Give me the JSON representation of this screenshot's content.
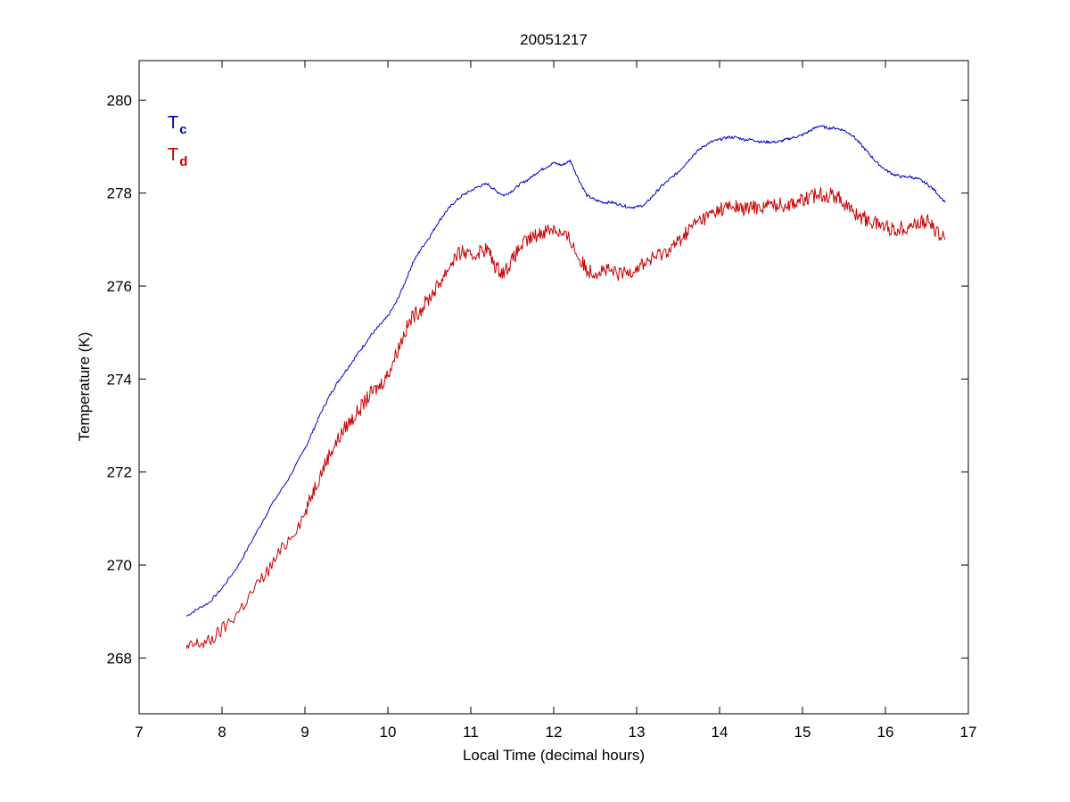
{
  "chart_data": {
    "type": "line",
    "title": "20051217",
    "xlabel": "Local Time (decimal hours)",
    "ylabel": "Temperature (K)",
    "xlim": [
      7,
      17
    ],
    "ylim": [
      266.8,
      280.85
    ],
    "xticks": [
      "7",
      "8",
      "9",
      "10",
      "11",
      "12",
      "13",
      "14",
      "15",
      "16",
      "17"
    ],
    "yticks": [
      "268",
      "270",
      "272",
      "274",
      "276",
      "278",
      "280"
    ],
    "grid": false,
    "legend_position": "top-left",
    "series": [
      {
        "name": "T",
        "subscript": "c",
        "color": "#0000cc",
        "x": [
          7.57,
          7.7,
          7.85,
          8.0,
          8.2,
          8.4,
          8.6,
          8.8,
          9.0,
          9.1,
          9.2,
          9.3,
          9.4,
          9.5,
          9.6,
          9.7,
          9.8,
          9.9,
          10.0,
          10.1,
          10.2,
          10.3,
          10.4,
          10.5,
          10.6,
          10.7,
          10.8,
          10.9,
          11.0,
          11.1,
          11.2,
          11.3,
          11.4,
          11.5,
          11.6,
          11.7,
          11.8,
          11.9,
          12.0,
          12.1,
          12.2,
          12.3,
          12.4,
          12.5,
          12.6,
          12.7,
          12.8,
          12.9,
          13.0,
          13.1,
          13.2,
          13.3,
          13.4,
          13.5,
          13.6,
          13.7,
          13.8,
          13.9,
          14.0,
          14.1,
          14.2,
          14.3,
          14.4,
          14.5,
          14.6,
          14.7,
          14.8,
          14.9,
          15.0,
          15.1,
          15.2,
          15.3,
          15.4,
          15.5,
          15.6,
          15.7,
          15.8,
          15.9,
          16.0,
          16.1,
          16.2,
          16.3,
          16.4,
          16.5,
          16.6,
          16.72
        ],
        "y": [
          268.9,
          269.05,
          269.2,
          269.5,
          270.0,
          270.65,
          271.3,
          271.85,
          272.5,
          272.9,
          273.3,
          273.65,
          273.95,
          274.2,
          274.45,
          274.7,
          274.95,
          275.15,
          275.35,
          275.65,
          276.05,
          276.5,
          276.8,
          277.05,
          277.35,
          277.6,
          277.8,
          277.95,
          278.05,
          278.15,
          278.2,
          278.05,
          277.95,
          278.05,
          278.2,
          278.3,
          278.45,
          278.55,
          278.65,
          278.6,
          278.7,
          278.3,
          277.95,
          277.85,
          277.8,
          277.8,
          277.75,
          277.7,
          277.7,
          277.75,
          277.95,
          278.15,
          278.3,
          278.45,
          278.65,
          278.85,
          279.0,
          279.1,
          279.15,
          279.2,
          279.2,
          279.15,
          279.15,
          279.1,
          279.1,
          279.1,
          279.15,
          279.2,
          279.25,
          279.35,
          279.45,
          279.4,
          279.4,
          279.35,
          279.25,
          279.05,
          278.85,
          278.65,
          278.5,
          278.4,
          278.35,
          278.35,
          278.3,
          278.2,
          278.05,
          277.8
        ]
      },
      {
        "name": "T",
        "subscript": "d",
        "color": "#cc0000",
        "x": [
          7.57,
          7.7,
          7.85,
          8.0,
          8.2,
          8.4,
          8.6,
          8.8,
          9.0,
          9.1,
          9.2,
          9.3,
          9.4,
          9.5,
          9.6,
          9.7,
          9.8,
          9.9,
          10.0,
          10.1,
          10.2,
          10.3,
          10.4,
          10.5,
          10.6,
          10.7,
          10.8,
          10.9,
          11.0,
          11.1,
          11.2,
          11.3,
          11.4,
          11.5,
          11.6,
          11.7,
          11.8,
          11.9,
          12.0,
          12.1,
          12.2,
          12.3,
          12.4,
          12.5,
          12.6,
          12.7,
          12.8,
          12.9,
          13.0,
          13.1,
          13.2,
          13.3,
          13.4,
          13.5,
          13.6,
          13.7,
          13.8,
          13.9,
          14.0,
          14.1,
          14.2,
          14.3,
          14.4,
          14.5,
          14.6,
          14.7,
          14.8,
          14.9,
          15.0,
          15.1,
          15.2,
          15.3,
          15.4,
          15.5,
          15.6,
          15.7,
          15.8,
          15.9,
          16.0,
          16.1,
          16.2,
          16.3,
          16.4,
          16.5,
          16.6,
          16.72
        ],
        "y": [
          268.2,
          268.3,
          268.35,
          268.6,
          269.0,
          269.5,
          270.0,
          270.55,
          271.1,
          271.6,
          272.0,
          272.4,
          272.7,
          273.0,
          273.2,
          273.45,
          273.7,
          273.85,
          274.1,
          274.55,
          275.0,
          275.35,
          275.5,
          275.75,
          276.0,
          276.3,
          276.6,
          276.75,
          276.6,
          276.75,
          276.8,
          276.4,
          276.3,
          276.55,
          276.85,
          277.0,
          277.1,
          277.2,
          277.25,
          277.1,
          277.0,
          276.6,
          276.35,
          276.3,
          276.35,
          276.3,
          276.25,
          276.3,
          276.4,
          276.5,
          276.6,
          276.7,
          276.8,
          276.95,
          277.15,
          277.35,
          277.45,
          277.55,
          277.65,
          277.7,
          277.7,
          277.65,
          277.7,
          277.7,
          277.75,
          277.75,
          277.75,
          277.8,
          277.85,
          277.9,
          278.0,
          277.95,
          277.95,
          277.8,
          277.6,
          277.5,
          277.4,
          277.35,
          277.3,
          277.2,
          277.25,
          277.3,
          277.35,
          277.4,
          277.2,
          277.0
        ]
      }
    ]
  }
}
